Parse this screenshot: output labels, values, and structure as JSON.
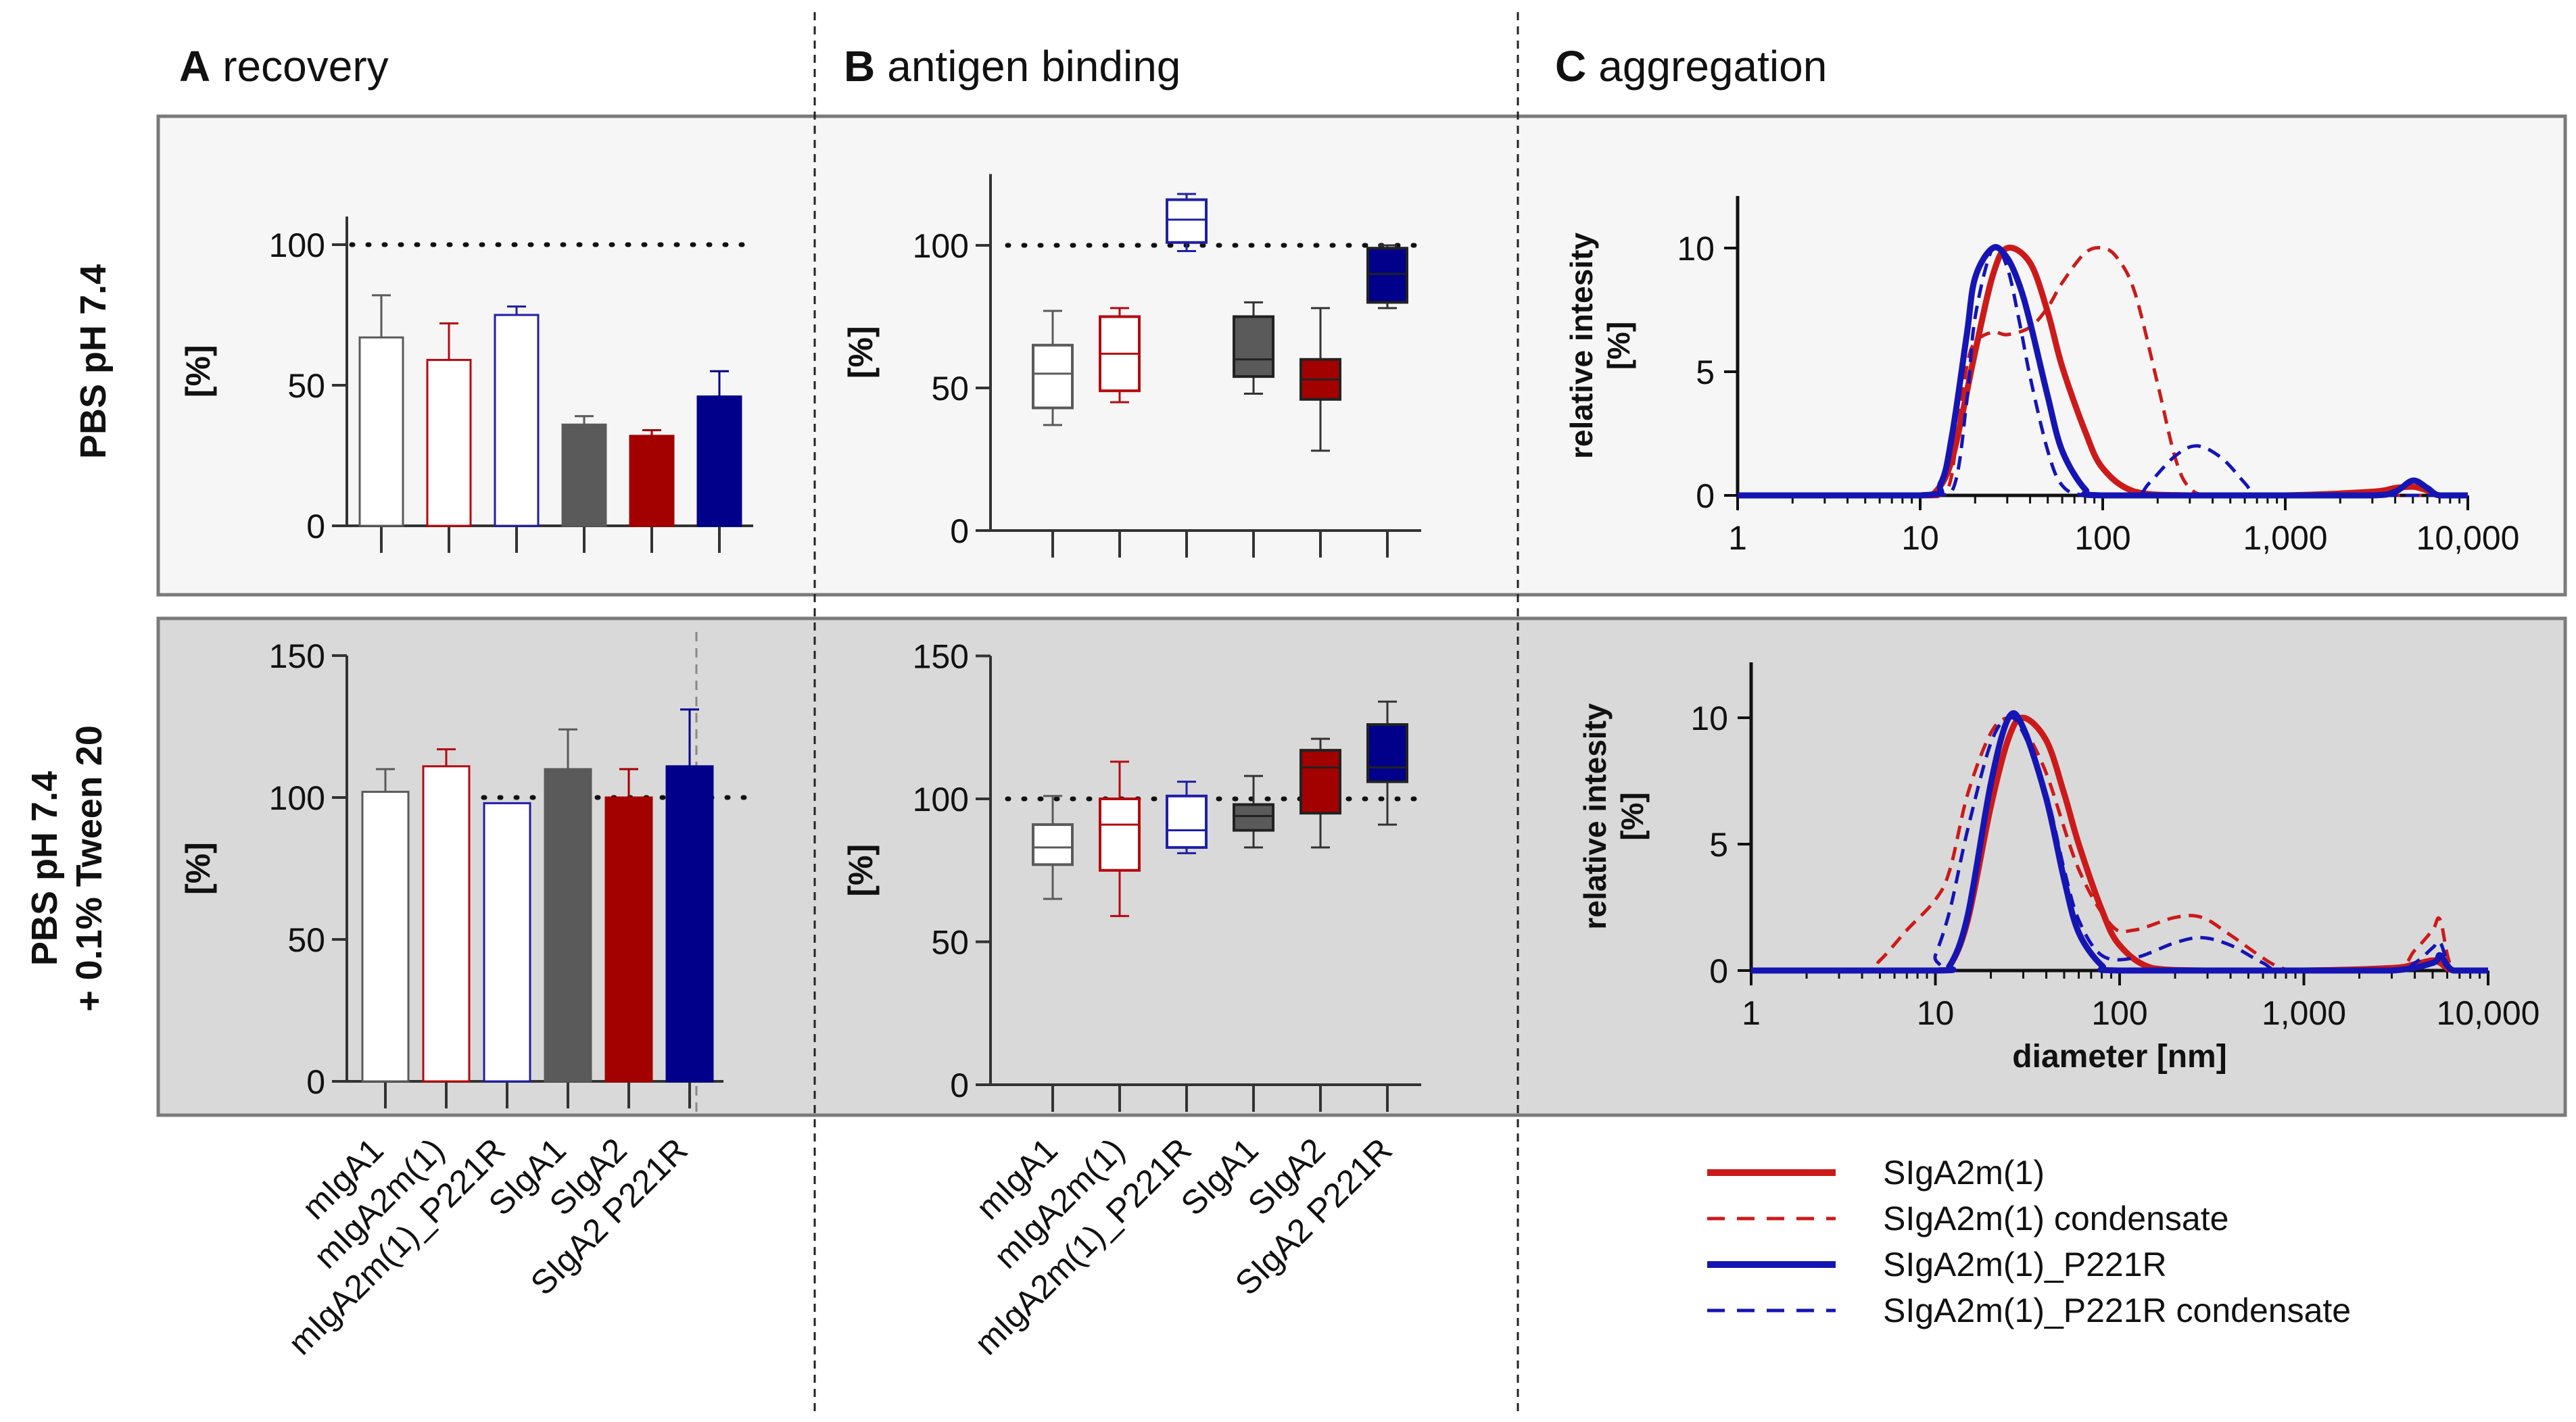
{
  "colors": {
    "white_fill": "#ffffff",
    "red": "#b5090f",
    "dark_red": "#a30000",
    "blue": "#1f1fa6",
    "navy": "#00008b",
    "gray": "#5a5a5a",
    "panel_top_bg": "#f6f6f6",
    "panel_bottom_bg": "#d9d9d9",
    "line_red": "#cc1a1a",
    "line_blue": "#1515b4"
  },
  "columns": {
    "A": {
      "letter": "A",
      "title": "recovery"
    },
    "B": {
      "letter": "B",
      "title": "antigen binding"
    },
    "C": {
      "letter": "C",
      "title": "aggregation"
    }
  },
  "rows": {
    "top_label": "PBS pH 7.4",
    "bottom_label_1": "PBS pH 7.4",
    "bottom_label_2": "+ 0.1% Tween 20"
  },
  "sample_labels": [
    "mIgA1",
    "mIgA2m(1)",
    "mIgA2m(1)_P221R",
    "SIgA1",
    "SIgA2",
    "SIgA2 P221R"
  ],
  "legend": [
    {
      "label": "SIgA2m(1)",
      "style": "solid",
      "color_key": "line_red"
    },
    {
      "label": "SIgA2m(1) condensate",
      "style": "dashed",
      "color_key": "line_red"
    },
    {
      "label": "SIgA2m(1)_P221R",
      "style": "solid",
      "color_key": "line_blue"
    },
    {
      "label": "SIgA2m(1)_P221R  condensate",
      "style": "dashed",
      "color_key": "line_blue"
    }
  ],
  "chart_data": [
    {
      "id": "A_top",
      "type": "bar",
      "panel": "A recovery / PBS pH 7.4",
      "ylabel": "[%]",
      "ylim": [
        0,
        110
      ],
      "yticks": [
        0,
        50,
        100
      ],
      "reference_line": 100,
      "categories": [
        "mIgA1",
        "mIgA2m(1)",
        "mIgA2m(1)_P221R",
        "SIgA1",
        "SIgA2",
        "SIgA2 P221R"
      ],
      "values": [
        67,
        59,
        75,
        36,
        32,
        46
      ],
      "errors": [
        15,
        13,
        3,
        3,
        2,
        9
      ],
      "fill_keys": [
        "white_fill",
        "white_fill",
        "white_fill",
        "gray",
        "dark_red",
        "navy"
      ],
      "stroke_keys": [
        "gray",
        "red",
        "blue",
        "gray",
        "dark_red",
        "navy"
      ]
    },
    {
      "id": "A_bottom",
      "type": "bar",
      "panel": "A recovery / PBS pH 7.4 + 0.1% Tween 20",
      "ylabel": "[%]",
      "ylim": [
        0,
        150
      ],
      "yticks": [
        0,
        50,
        100,
        150
      ],
      "reference_line": 100,
      "categories": [
        "mIgA1",
        "mIgA2m(1)",
        "mIgA2m(1)_P221R",
        "SIgA1",
        "SIgA2",
        "SIgA2 P221R"
      ],
      "values": [
        102,
        111,
        98,
        110,
        100,
        111
      ],
      "errors": [
        8,
        6,
        0,
        14,
        10,
        20
      ],
      "fill_keys": [
        "white_fill",
        "white_fill",
        "white_fill",
        "gray",
        "dark_red",
        "navy"
      ],
      "stroke_keys": [
        "gray",
        "red",
        "blue",
        "gray",
        "dark_red",
        "navy"
      ]
    },
    {
      "id": "B_top",
      "type": "box",
      "panel": "B antigen binding / PBS pH 7.4",
      "ylabel": "[%]",
      "ylim": [
        0,
        125
      ],
      "yticks": [
        0,
        50,
        100
      ],
      "reference_line": 100,
      "categories": [
        "mIgA1",
        "mIgA2m(1)",
        "mIgA2m(1)_P221R",
        "SIgA1",
        "SIgA2",
        "SIgA2 P221R"
      ],
      "boxes": [
        {
          "min": 37,
          "q1": 43,
          "median": 55,
          "q3": 65,
          "max": 77
        },
        {
          "min": 45,
          "q1": 49,
          "median": 62,
          "q3": 75,
          "max": 78
        },
        {
          "min": 98,
          "q1": 101,
          "median": 109,
          "q3": 116,
          "max": 118
        },
        {
          "min": 48,
          "q1": 54,
          "median": 60,
          "q3": 75,
          "max": 80
        },
        {
          "min": 28,
          "q1": 46,
          "median": 53,
          "q3": 60,
          "max": 78
        },
        {
          "min": 78,
          "q1": 80,
          "median": 90,
          "q3": 99,
          "max": 100
        }
      ],
      "fill_keys": [
        "white_fill",
        "white_fill",
        "white_fill",
        "gray",
        "dark_red",
        "navy"
      ],
      "stroke_keys": [
        "gray",
        "red",
        "blue",
        "gray",
        "dark_red",
        "navy"
      ]
    },
    {
      "id": "B_bottom",
      "type": "box",
      "panel": "B antigen binding / PBS pH 7.4 + 0.1% Tween 20",
      "ylabel": "[%]",
      "ylim": [
        0,
        150
      ],
      "yticks": [
        0,
        50,
        100,
        150
      ],
      "reference_line": 100,
      "categories": [
        "mIgA1",
        "mIgA2m(1)",
        "mIgA2m(1)_P221R",
        "SIgA1",
        "SIgA2",
        "SIgA2 P221R"
      ],
      "boxes": [
        {
          "min": 65,
          "q1": 77,
          "median": 83,
          "q3": 91,
          "max": 101
        },
        {
          "min": 59,
          "q1": 75,
          "median": 91,
          "q3": 100,
          "max": 113
        },
        {
          "min": 81,
          "q1": 83,
          "median": 89,
          "q3": 101,
          "max": 106
        },
        {
          "min": 83,
          "q1": 89,
          "median": 94,
          "q3": 98,
          "max": 108
        },
        {
          "min": 83,
          "q1": 95,
          "median": 111,
          "q3": 117,
          "max": 121
        },
        {
          "min": 91,
          "q1": 106,
          "median": 111,
          "q3": 126,
          "max": 134
        }
      ],
      "fill_keys": [
        "white_fill",
        "white_fill",
        "white_fill",
        "gray",
        "dark_red",
        "navy"
      ],
      "stroke_keys": [
        "gray",
        "red",
        "blue",
        "gray",
        "dark_red",
        "navy"
      ]
    },
    {
      "id": "C_top",
      "type": "line",
      "panel": "C aggregation / PBS pH 7.4",
      "xscale": "log",
      "xlim": [
        1,
        10000
      ],
      "ylim": [
        0,
        12
      ],
      "xticks": [
        1,
        10,
        100,
        1000,
        10000
      ],
      "xtick_labels": [
        "1",
        "10",
        "100",
        "1,000",
        "10,000"
      ],
      "yticks": [
        0,
        5,
        10
      ],
      "ylabel": "relative intesity",
      "ylabel2": "[%]",
      "xlabel": "",
      "series": [
        {
          "name": "SIgA2m(1)",
          "style": "solid",
          "color_key": "line_red",
          "x": [
            1,
            10,
            12,
            15,
            20,
            25,
            30,
            40,
            50,
            60,
            80,
            100,
            150,
            300,
            1000,
            3000,
            4000,
            5000,
            6000,
            7000,
            10000
          ],
          "y": [
            0,
            0,
            0.1,
            1.5,
            5.8,
            8.9,
            10,
            9.4,
            7.4,
            5.2,
            2.6,
            1.1,
            0.15,
            0,
            0,
            0.15,
            0.3,
            0.35,
            0.2,
            0,
            0
          ]
        },
        {
          "name": "SIgA2m(1) condensate",
          "style": "dashed",
          "color_key": "line_red",
          "x": [
            1,
            10,
            14,
            16,
            18,
            20,
            25,
            30,
            40,
            50,
            60,
            80,
            100,
            120,
            150,
            200,
            250,
            300,
            400,
            1000,
            10000
          ],
          "y": [
            0,
            0,
            0.2,
            2.5,
            5.2,
            6.2,
            6.6,
            6.5,
            6.8,
            7.6,
            8.6,
            9.8,
            10,
            9.6,
            8.2,
            4.5,
            1.5,
            0.3,
            0,
            0,
            0
          ]
        },
        {
          "name": "SIgA2m(1)_P221R",
          "style": "solid",
          "color_key": "line_blue",
          "x": [
            1,
            10,
            13,
            15,
            18,
            20,
            25,
            30,
            35,
            40,
            50,
            60,
            80,
            100,
            1000,
            3000,
            4000,
            5000,
            6000,
            7000,
            10000
          ],
          "y": [
            0,
            0,
            0.5,
            2.5,
            6.5,
            8.8,
            10,
            9.6,
            8.5,
            7,
            4,
            1.8,
            0.25,
            0,
            0,
            0,
            0.15,
            0.6,
            0.3,
            0,
            0
          ]
        },
        {
          "name": "SIgA2m(1)_P221R condensate",
          "style": "dashed",
          "color_key": "line_blue",
          "x": [
            1,
            10,
            15,
            18,
            20,
            25,
            30,
            35,
            40,
            50,
            60,
            80,
            150,
            180,
            250,
            330,
            450,
            600,
            700,
            1000,
            10000
          ],
          "y": [
            0,
            0,
            0.2,
            3.8,
            7.2,
            10,
            9.2,
            7,
            4.8,
            1.8,
            0.4,
            0,
            0,
            0.5,
            1.6,
            2.0,
            1.5,
            0.5,
            0,
            0,
            0
          ]
        }
      ]
    },
    {
      "id": "C_bottom",
      "type": "line",
      "panel": "C aggregation / PBS pH 7.4 + 0.1% Tween 20",
      "xscale": "log",
      "xlim": [
        1,
        10000
      ],
      "ylim": [
        0,
        12
      ],
      "xticks": [
        1,
        10,
        100,
        1000,
        10000
      ],
      "xtick_labels": [
        "1",
        "10",
        "100",
        "1,000",
        "10,000"
      ],
      "yticks": [
        0,
        5,
        10
      ],
      "ylabel": "relative intesity",
      "ylabel2": "[%]",
      "xlabel": "diameter [nm]",
      "series": [
        {
          "name": "SIgA2m(1)",
          "style": "solid",
          "color_key": "line_red",
          "x": [
            1,
            10,
            12,
            15,
            20,
            25,
            30,
            40,
            50,
            60,
            80,
            100,
            150,
            300,
            1000,
            3000,
            4000,
            5000,
            5500,
            6500,
            10000
          ],
          "y": [
            0,
            0,
            0.2,
            2,
            6.5,
            9.2,
            10,
            9.1,
            7,
            5,
            2.4,
            1,
            0.1,
            0,
            0,
            0.1,
            0.25,
            0.4,
            0.3,
            0,
            0
          ]
        },
        {
          "name": "SIgA2m(1) condensate",
          "style": "dashed",
          "color_key": "line_red",
          "x": [
            1,
            4,
            5,
            7,
            10,
            12,
            15,
            20,
            25,
            30,
            40,
            60,
            90,
            120,
            200,
            280,
            400,
            700,
            1000,
            3000,
            4000,
            5000,
            5500,
            6500,
            10000
          ],
          "y": [
            0,
            0,
            0.4,
            1.6,
            2.8,
            4,
            7,
            9.4,
            10,
            9.6,
            7.8,
            4,
            1.8,
            1.6,
            2.1,
            2.1,
            1.4,
            0.2,
            0,
            0,
            0.8,
            1.6,
            2.0,
            0,
            0
          ]
        },
        {
          "name": "SIgA2m(1)_P221R",
          "style": "solid",
          "color_key": "line_blue",
          "x": [
            1,
            10,
            12,
            15,
            20,
            25,
            30,
            40,
            50,
            60,
            80,
            100,
            1000,
            3000,
            5000,
            5500,
            6500,
            10000
          ],
          "y": [
            0,
            0,
            0.2,
            2.2,
            7.4,
            10,
            9.6,
            6.8,
            3.6,
            1.5,
            0.2,
            0,
            0,
            0,
            0.3,
            0.6,
            0,
            0
          ]
        },
        {
          "name": "SIgA2m(1)_P221R condensate",
          "style": "dashed",
          "color_key": "line_blue",
          "x": [
            1,
            9,
            10,
            12,
            15,
            20,
            25,
            30,
            40,
            50,
            60,
            80,
            120,
            200,
            280,
            400,
            600,
            800,
            3000,
            4000,
            5000,
            5500,
            6500,
            10000
          ],
          "y": [
            0,
            0,
            0.6,
            2.4,
            5.6,
            9,
            10,
            9.4,
            7,
            4,
            2,
            0.6,
            0.5,
            1.1,
            1.3,
            1,
            0.3,
            0,
            0,
            0.3,
            0.9,
            1.1,
            0,
            0
          ]
        }
      ]
    }
  ]
}
